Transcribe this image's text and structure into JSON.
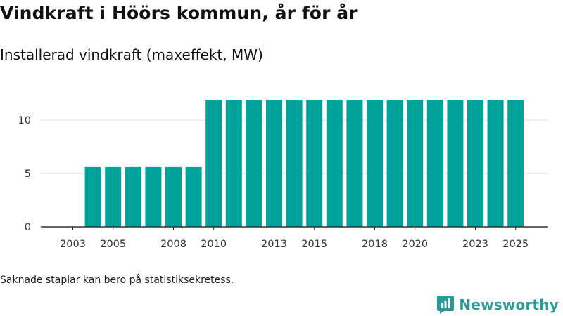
{
  "header": {
    "title": "Vindkraft i Höörs kommun, år för år",
    "subtitle": "Installerad vindkraft (maxeffekt, MW)"
  },
  "footer": {
    "note": "Saknade staplar kan bero på statistiksekretess.",
    "brand": "Newsworthy",
    "brand_icon": "newsworthy-logo-icon"
  },
  "colors": {
    "bar": "#00a399",
    "grid": "#dddddd",
    "axis": "#333333",
    "brand": "#2b9a96"
  },
  "chart_data": {
    "type": "bar",
    "title": "Installerad vindkraft (maxeffekt, MW)",
    "xlabel": "",
    "ylabel": "",
    "categories": [
      "2003",
      "2004",
      "2005",
      "2006",
      "2007",
      "2008",
      "2009",
      "2010",
      "2011",
      "2012",
      "2013",
      "2014",
      "2015",
      "2016",
      "2017",
      "2018",
      "2019",
      "2020",
      "2021",
      "2022",
      "2023",
      "2024",
      "2025"
    ],
    "values": [
      null,
      5.6,
      5.6,
      5.6,
      5.6,
      5.6,
      5.6,
      11.9,
      11.9,
      11.9,
      11.9,
      11.9,
      11.9,
      11.9,
      11.9,
      11.9,
      11.9,
      11.9,
      11.9,
      11.9,
      11.9,
      11.9,
      11.9
    ],
    "x_tick_labels": [
      "2003",
      "2005",
      "2008",
      "2010",
      "2013",
      "2015",
      "2018",
      "2020",
      "2023",
      "2025"
    ],
    "y_ticks": [
      0,
      5,
      10
    ],
    "y_tick_labels": [
      "0",
      "5",
      "10"
    ],
    "ylim": [
      0,
      12
    ],
    "grid": true,
    "legend": "none"
  }
}
